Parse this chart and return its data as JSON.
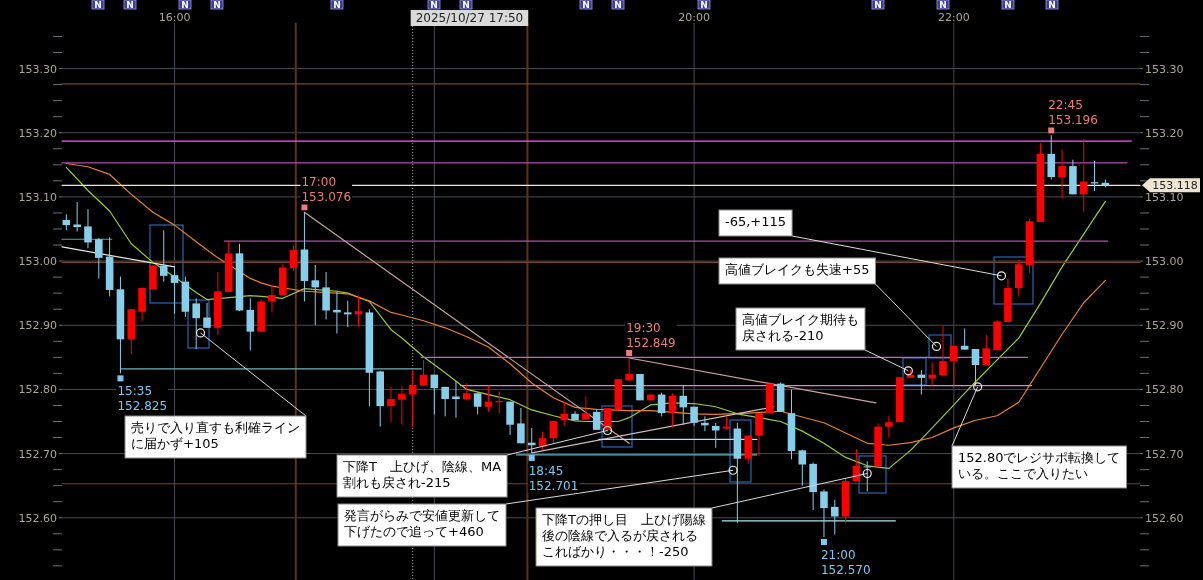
{
  "chart_data": {
    "type": "candlestick",
    "xlim": [
      "2025-10-27T15:08",
      "2025-10-27T23:26"
    ],
    "xticks": [
      {
        "value": "2025-10-27T16:00",
        "label": "16:00"
      },
      {
        "value": "2025-10-27T18:00",
        "label": null
      },
      {
        "value": "2025-10-27T20:00",
        "label": "20:00"
      },
      {
        "value": "2025-10-27T22:00",
        "label": "22:00"
      }
    ],
    "ylim": [
      152.503,
      153.371
    ],
    "yticks": [
      {
        "value": 153.35,
        "label": null
      },
      {
        "value": 153.325,
        "label": null
      },
      {
        "value": 153.3,
        "label": "153.30"
      },
      {
        "value": 153.275,
        "label": null
      },
      {
        "value": 153.25,
        "label": null
      },
      {
        "value": 153.225,
        "label": null
      },
      {
        "value": 153.2,
        "label": "153.20"
      },
      {
        "value": 153.175,
        "label": null
      },
      {
        "value": 153.15,
        "label": null
      },
      {
        "value": 153.125,
        "label": null
      },
      {
        "value": 153.1,
        "label": "153.10"
      },
      {
        "value": 153.075,
        "label": null
      },
      {
        "value": 153.05,
        "label": null
      },
      {
        "value": 153.025,
        "label": null
      },
      {
        "value": 153.0,
        "label": "153.00"
      },
      {
        "value": 152.975,
        "label": null
      },
      {
        "value": 152.95,
        "label": null
      },
      {
        "value": 152.925,
        "label": null
      },
      {
        "value": 152.9,
        "label": "152.90"
      },
      {
        "value": 152.875,
        "label": null
      },
      {
        "value": 152.85,
        "label": null
      },
      {
        "value": 152.825,
        "label": null
      },
      {
        "value": 152.8,
        "label": "152.80"
      },
      {
        "value": 152.775,
        "label": null
      },
      {
        "value": 152.75,
        "label": null
      },
      {
        "value": 152.725,
        "label": null
      },
      {
        "value": 152.7,
        "label": "152.70"
      },
      {
        "value": 152.675,
        "label": null
      },
      {
        "value": 152.65,
        "label": null
      },
      {
        "value": 152.625,
        "label": null
      },
      {
        "value": 152.6,
        "label": "152.60"
      },
      {
        "value": 152.575,
        "label": null
      },
      {
        "value": 152.55,
        "label": null
      },
      {
        "value": 152.525,
        "label": null
      }
    ],
    "y2lim": [
      152.503,
      153.371
    ],
    "y2ticks": [
      {
        "value": 153.35,
        "label": null
      },
      {
        "value": 153.325,
        "label": null
      },
      {
        "value": 153.3,
        "label": "153.30"
      },
      {
        "value": 153.275,
        "label": null
      },
      {
        "value": 153.25,
        "label": null
      },
      {
        "value": 153.225,
        "label": null
      },
      {
        "value": 153.2,
        "label": "153.20"
      },
      {
        "value": 153.175,
        "label": null
      },
      {
        "value": 153.15,
        "label": null
      },
      {
        "value": 153.125,
        "label": null
      },
      {
        "value": 153.1,
        "label": "153.10"
      },
      {
        "value": 153.075,
        "label": null
      },
      {
        "value": 153.05,
        "label": null
      },
      {
        "value": 153.025,
        "label": null
      },
      {
        "value": 153.0,
        "label": "153.00"
      },
      {
        "value": 152.975,
        "label": null
      },
      {
        "value": 152.95,
        "label": null
      },
      {
        "value": 152.925,
        "label": null
      },
      {
        "value": 152.9,
        "label": "152.90"
      },
      {
        "value": 152.875,
        "label": null
      },
      {
        "value": 152.85,
        "label": null
      },
      {
        "value": 152.825,
        "label": null
      },
      {
        "value": 152.8,
        "label": "152.80"
      },
      {
        "value": 152.775,
        "label": null
      },
      {
        "value": 152.75,
        "label": null
      },
      {
        "value": 152.725,
        "label": null
      },
      {
        "value": 152.7,
        "label": "152.70"
      },
      {
        "value": 152.675,
        "label": null
      },
      {
        "value": 152.65,
        "label": null
      },
      {
        "value": 152.625,
        "label": null
      },
      {
        "value": 152.6,
        "label": "152.60"
      },
      {
        "value": 152.575,
        "label": null
      },
      {
        "value": 152.55,
        "label": null
      },
      {
        "value": 152.525,
        "label": null
      }
    ],
    "grid": true,
    "series": [
      {
        "type": "candlestick",
        "x": [
          "2025-10-27T15:10",
          "2025-10-27T15:15",
          "2025-10-27T15:20",
          "2025-10-27T15:25",
          "2025-10-27T15:30",
          "2025-10-27T15:35",
          "2025-10-27T15:40",
          "2025-10-27T15:45",
          "2025-10-27T15:50",
          "2025-10-27T15:55",
          "2025-10-27T16:00",
          "2025-10-27T16:05",
          "2025-10-27T16:10",
          "2025-10-27T16:15",
          "2025-10-27T16:20",
          "2025-10-27T16:25",
          "2025-10-27T16:30",
          "2025-10-27T16:35",
          "2025-10-27T16:40",
          "2025-10-27T16:45",
          "2025-10-27T16:50",
          "2025-10-27T16:55",
          "2025-10-27T17:00",
          "2025-10-27T17:05",
          "2025-10-27T17:10",
          "2025-10-27T17:15",
          "2025-10-27T17:20",
          "2025-10-27T17:25",
          "2025-10-27T17:30",
          "2025-10-27T17:35",
          "2025-10-27T17:40",
          "2025-10-27T17:45",
          "2025-10-27T17:50",
          "2025-10-27T17:55",
          "2025-10-27T18:00",
          "2025-10-27T18:05",
          "2025-10-27T18:10",
          "2025-10-27T18:15",
          "2025-10-27T18:20",
          "2025-10-27T18:25",
          "2025-10-27T18:30",
          "2025-10-27T18:35",
          "2025-10-27T18:40",
          "2025-10-27T18:45",
          "2025-10-27T18:50",
          "2025-10-27T18:55",
          "2025-10-27T19:00",
          "2025-10-27T19:05",
          "2025-10-27T19:10",
          "2025-10-27T19:15",
          "2025-10-27T19:20",
          "2025-10-27T19:25",
          "2025-10-27T19:30",
          "2025-10-27T19:35",
          "2025-10-27T19:40",
          "2025-10-27T19:45",
          "2025-10-27T19:50",
          "2025-10-27T19:55",
          "2025-10-27T20:00",
          "2025-10-27T20:05",
          "2025-10-27T20:10",
          "2025-10-27T20:15",
          "2025-10-27T20:20",
          "2025-10-27T20:25",
          "2025-10-27T20:30",
          "2025-10-27T20:35",
          "2025-10-27T20:40",
          "2025-10-27T20:45",
          "2025-10-27T20:50",
          "2025-10-27T20:55",
          "2025-10-27T21:00",
          "2025-10-27T21:05",
          "2025-10-27T21:10",
          "2025-10-27T21:15",
          "2025-10-27T21:20",
          "2025-10-27T21:25",
          "2025-10-27T21:30",
          "2025-10-27T21:35",
          "2025-10-27T21:40",
          "2025-10-27T21:45",
          "2025-10-27T21:50",
          "2025-10-27T21:55",
          "2025-10-27T22:00",
          "2025-10-27T22:05",
          "2025-10-27T22:10",
          "2025-10-27T22:15",
          "2025-10-27T22:20",
          "2025-10-27T22:25",
          "2025-10-27T22:30",
          "2025-10-27T22:35",
          "2025-10-27T22:40",
          "2025-10-27T22:45",
          "2025-10-27T22:50",
          "2025-10-27T22:55",
          "2025-10-27T23:00",
          "2025-10-27T23:05",
          "2025-10-27T23:10"
        ],
        "ohlc": [
          [
            153.064,
            153.073,
            153.048,
            153.056
          ],
          [
            153.057,
            153.092,
            153.046,
            153.053
          ],
          [
            153.054,
            153.081,
            153.02,
            153.029
          ],
          [
            153.034,
            153.036,
            152.973,
            153.005
          ],
          [
            153.007,
            153.037,
            152.945,
            152.955
          ],
          [
            152.956,
            152.976,
            152.825,
            152.878
          ],
          [
            152.878,
            152.925,
            152.855,
            152.925
          ],
          [
            152.921,
            152.959,
            152.907,
            152.958
          ],
          [
            152.956,
            152.994,
            152.955,
            152.993
          ],
          [
            152.993,
            153.048,
            152.968,
            152.977
          ],
          [
            152.978,
            152.991,
            152.918,
            152.966
          ],
          [
            152.968,
            152.976,
            152.913,
            152.921
          ],
          [
            152.934,
            152.942,
            152.863,
            152.911
          ],
          [
            152.912,
            152.935,
            152.896,
            152.896
          ],
          [
            152.896,
            152.983,
            152.885,
            152.953
          ],
          [
            152.952,
            153.032,
            152.952,
            153.012
          ],
          [
            153.012,
            153.027,
            152.922,
            152.923
          ],
          [
            152.924,
            152.942,
            152.861,
            152.89
          ],
          [
            152.89,
            152.94,
            152.889,
            152.937
          ],
          [
            152.937,
            152.963,
            152.92,
            152.947
          ],
          [
            152.947,
            152.995,
            152.947,
            152.99
          ],
          [
            152.989,
            153.025,
            152.985,
            153.017
          ],
          [
            153.018,
            153.076,
            152.937,
            152.969
          ],
          [
            152.97,
            152.994,
            152.9,
            152.959
          ],
          [
            152.959,
            152.983,
            152.909,
            152.923
          ],
          [
            152.924,
            152.952,
            152.887,
            152.92
          ],
          [
            152.92,
            152.938,
            152.897,
            152.917
          ],
          [
            152.917,
            152.947,
            152.898,
            152.922
          ],
          [
            152.92,
            152.925,
            152.774,
            152.826
          ],
          [
            152.828,
            152.829,
            152.742,
            152.774
          ],
          [
            152.774,
            152.804,
            152.749,
            152.785
          ],
          [
            152.784,
            152.805,
            152.745,
            152.793
          ],
          [
            152.792,
            152.831,
            152.742,
            152.807
          ],
          [
            152.806,
            152.846,
            152.806,
            152.823
          ],
          [
            152.823,
            152.823,
            152.761,
            152.802
          ],
          [
            152.804,
            152.804,
            152.758,
            152.785
          ],
          [
            152.789,
            152.813,
            152.756,
            152.785
          ],
          [
            152.785,
            152.81,
            152.783,
            152.794
          ],
          [
            152.794,
            152.795,
            152.761,
            152.773
          ],
          [
            152.773,
            152.806,
            152.765,
            152.781
          ],
          [
            152.78,
            152.797,
            152.763,
            152.782
          ],
          [
            152.781,
            152.781,
            152.729,
            152.745
          ],
          [
            152.747,
            152.771,
            152.716,
            152.716
          ],
          [
            152.717,
            152.74,
            152.701,
            152.713
          ],
          [
            152.711,
            152.734,
            152.706,
            152.724
          ],
          [
            152.724,
            152.751,
            152.716,
            152.751
          ],
          [
            152.752,
            152.781,
            152.743,
            152.762
          ],
          [
            152.762,
            152.766,
            152.752,
            152.752
          ],
          [
            152.753,
            152.789,
            152.753,
            152.763
          ],
          [
            152.765,
            152.768,
            152.737,
            152.737
          ],
          [
            152.737,
            152.771,
            152.733,
            152.771
          ],
          [
            152.768,
            152.816,
            152.768,
            152.816
          ],
          [
            152.814,
            152.849,
            152.814,
            152.824
          ],
          [
            152.824,
            152.824,
            152.783,
            152.783
          ],
          [
            152.783,
            152.792,
            152.783,
            152.792
          ],
          [
            152.792,
            152.795,
            152.758,
            152.763
          ],
          [
            152.764,
            152.794,
            152.74,
            152.79
          ],
          [
            152.79,
            152.807,
            152.745,
            152.772
          ],
          [
            152.773,
            152.773,
            152.743,
            152.748
          ],
          [
            152.748,
            152.758,
            152.735,
            152.744
          ],
          [
            152.743,
            152.748,
            152.709,
            152.736
          ],
          [
            152.739,
            152.758,
            152.737,
            152.742
          ],
          [
            152.739,
            152.748,
            152.592,
            152.692
          ],
          [
            152.692,
            152.728,
            152.684,
            152.728
          ],
          [
            152.728,
            152.763,
            152.696,
            152.763
          ],
          [
            152.763,
            152.811,
            152.763,
            152.809
          ],
          [
            152.809,
            152.811,
            152.765,
            152.765
          ],
          [
            152.763,
            152.8,
            152.691,
            152.704
          ],
          [
            152.705,
            152.706,
            152.65,
            152.683
          ],
          [
            152.684,
            152.686,
            152.612,
            152.64
          ],
          [
            152.641,
            152.644,
            152.57,
            152.615
          ],
          [
            152.617,
            152.628,
            152.574,
            152.602
          ],
          [
            152.602,
            152.661,
            152.591,
            152.657
          ],
          [
            152.657,
            152.707,
            152.657,
            152.681
          ],
          [
            152.68,
            152.688,
            152.641,
            152.679
          ],
          [
            152.68,
            152.747,
            152.68,
            152.742
          ],
          [
            152.742,
            152.759,
            152.725,
            152.749
          ],
          [
            152.749,
            152.819,
            152.749,
            152.819
          ],
          [
            152.818,
            152.83,
            152.818,
            152.823
          ],
          [
            152.823,
            152.83,
            152.792,
            152.818
          ],
          [
            152.817,
            152.842,
            152.806,
            152.823
          ],
          [
            152.822,
            152.899,
            152.822,
            152.844
          ],
          [
            152.844,
            152.868,
            152.806,
            152.868
          ],
          [
            152.868,
            152.895,
            152.862,
            152.862
          ],
          [
            152.863,
            152.863,
            152.805,
            152.838
          ],
          [
            152.838,
            152.885,
            152.838,
            152.864
          ],
          [
            152.861,
            152.908,
            152.861,
            152.906
          ],
          [
            152.905,
            152.973,
            152.905,
            152.958
          ],
          [
            152.958,
            153.002,
            152.945,
            152.995
          ],
          [
            152.994,
            153.066,
            152.981,
            153.062
          ],
          [
            153.061,
            153.184,
            153.061,
            153.167
          ],
          [
            153.167,
            153.196,
            153.127,
            153.131
          ],
          [
            153.131,
            153.174,
            153.097,
            153.148
          ],
          [
            153.148,
            153.158,
            153.104,
            153.104
          ],
          [
            153.104,
            153.19,
            153.077,
            153.124
          ],
          [
            153.123,
            153.156,
            153.109,
            153.121
          ],
          [
            153.122,
            153.127,
            153.115,
            153.118
          ]
        ],
        "colors": [
          "#87ceeb",
          "#87ceeb",
          "#87ceeb",
          "#87ceeb",
          "#87ceeb",
          "#87ceeb",
          "#ff0000",
          "#ff0000",
          "#ff0000",
          "#87ceeb",
          "#87ceeb",
          "#87ceeb",
          "#87ceeb",
          "#87ceeb",
          "#ff0000",
          "#ff0000",
          "#87ceeb",
          "#87ceeb",
          "#ff0000",
          "#ff0000",
          "#ff0000",
          "#ff0000",
          "#87ceeb",
          "#87ceeb",
          "#87ceeb",
          "#87ceeb",
          "#87ceeb",
          "#ff0000",
          "#87ceeb",
          "#87ceeb",
          "#ff0000",
          "#ff0000",
          "#ff0000",
          "#ff0000",
          "#87ceeb",
          "#87ceeb",
          "#87ceeb",
          "#ff0000",
          "#87ceeb",
          "#ff0000",
          "#ff0000",
          "#87ceeb",
          "#87ceeb",
          "#87ceeb",
          "#ff0000",
          "#ff0000",
          "#ff0000",
          "#87ceeb",
          "#ff0000",
          "#87ceeb",
          "#ff0000",
          "#ff0000",
          "#ff0000",
          "#87ceeb",
          "#ff0000",
          "#87ceeb",
          "#ff0000",
          "#87ceeb",
          "#87ceeb",
          "#87ceeb",
          "#87ceeb",
          "#ff0000",
          "#87ceeb",
          "#ff0000",
          "#ff0000",
          "#ff0000",
          "#87ceeb",
          "#87ceeb",
          "#87ceeb",
          "#87ceeb",
          "#87ceeb",
          "#87ceeb",
          "#ff0000",
          "#ff0000",
          "#87ceeb",
          "#ff0000",
          "#ff0000",
          "#ff0000",
          "#ff0000",
          "#87ceeb",
          "#ff0000",
          "#ff0000",
          "#ff0000",
          "#87ceeb",
          "#87ceeb",
          "#ff0000",
          "#ff0000",
          "#ff0000",
          "#ff0000",
          "#ff0000",
          "#ff0000",
          "#87ceeb",
          "#ff0000",
          "#87ceeb",
          "#ff0000",
          "#87ceeb",
          "#87ceeb"
        ]
      },
      {
        "type": "line",
        "color": "#9acd32",
        "x": [
          "2025-10-27T15:10",
          "2025-10-27T15:20",
          "2025-10-27T15:30",
          "2025-10-27T15:40",
          "2025-10-27T15:50",
          "2025-10-27T16:00",
          "2025-10-27T16:10",
          "2025-10-27T16:15",
          "2025-10-27T16:35",
          "2025-10-27T16:40",
          "2025-10-27T16:50",
          "2025-10-27T17:00",
          "2025-10-27T17:15",
          "2025-10-27T17:20",
          "2025-10-27T17:30",
          "2025-10-27T17:40",
          "2025-10-27T17:45",
          "2025-10-27T17:55",
          "2025-10-27T18:05",
          "2025-10-27T18:15",
          "2025-10-27T18:25",
          "2025-10-27T18:35",
          "2025-10-27T18:45",
          "2025-10-27T18:55",
          "2025-10-27T19:05",
          "2025-10-27T19:10",
          "2025-10-27T19:25",
          "2025-10-27T19:30",
          "2025-10-27T19:40",
          "2025-10-27T19:50",
          "2025-10-27T20:00",
          "2025-10-27T20:10",
          "2025-10-27T20:20",
          "2025-10-27T20:35",
          "2025-10-27T20:40",
          "2025-10-27T20:50",
          "2025-10-27T21:00",
          "2025-10-27T21:10",
          "2025-10-27T21:20",
          "2025-10-27T21:30",
          "2025-10-27T21:40",
          "2025-10-27T21:50",
          "2025-10-27T22:00",
          "2025-10-27T22:10",
          "2025-10-27T22:20",
          "2025-10-27T22:30",
          "2025-10-27T22:40",
          "2025-10-27T22:50",
          "2025-10-27T23:00",
          "2025-10-27T23:10"
        ],
        "values": [
          153.146,
          153.11,
          153.078,
          153.027,
          152.998,
          152.975,
          152.951,
          152.94,
          152.946,
          152.945,
          152.942,
          152.957,
          152.953,
          152.95,
          152.937,
          152.893,
          152.88,
          152.851,
          152.826,
          152.8,
          152.792,
          152.784,
          152.768,
          152.759,
          152.751,
          152.75,
          152.75,
          152.756,
          152.776,
          152.779,
          152.778,
          152.773,
          152.762,
          152.753,
          152.75,
          152.735,
          152.716,
          152.694,
          152.681,
          152.677,
          152.705,
          152.74,
          152.776,
          152.812,
          152.846,
          152.88,
          152.934,
          152.991,
          153.042,
          153.093
        ]
      },
      {
        "type": "line",
        "color": "#e8821e",
        "x": [
          "2025-10-27T15:10",
          "2025-10-27T15:20",
          "2025-10-27T15:30",
          "2025-10-27T15:40",
          "2025-10-27T15:50",
          "2025-10-27T16:00",
          "2025-10-27T16:10",
          "2025-10-27T16:20",
          "2025-10-27T16:35",
          "2025-10-27T16:40",
          "2025-10-27T16:45",
          "2025-10-27T17:00",
          "2025-10-27T17:15",
          "2025-10-27T17:20",
          "2025-10-27T17:30",
          "2025-10-27T17:40",
          "2025-10-27T17:45",
          "2025-10-27T17:55",
          "2025-10-27T18:05",
          "2025-10-27T18:15",
          "2025-10-27T18:25",
          "2025-10-27T18:35",
          "2025-10-27T18:45",
          "2025-10-27T18:55",
          "2025-10-27T19:05",
          "2025-10-27T19:15",
          "2025-10-27T19:30",
          "2025-10-27T19:40",
          "2025-10-27T20:00",
          "2025-10-27T20:10",
          "2025-10-27T20:25",
          "2025-10-27T20:40",
          "2025-10-27T20:50",
          "2025-10-27T21:00",
          "2025-10-27T21:10",
          "2025-10-27T21:20",
          "2025-10-27T21:30",
          "2025-10-27T21:40",
          "2025-10-27T21:50",
          "2025-10-27T22:00",
          "2025-10-27T22:10",
          "2025-10-27T22:20",
          "2025-10-27T22:30",
          "2025-10-27T22:40",
          "2025-10-27T22:50",
          "2025-10-27T23:00",
          "2025-10-27T23:10"
        ],
        "values": [
          153.152,
          153.147,
          153.135,
          153.104,
          153.076,
          153.056,
          153.03,
          153.005,
          152.973,
          152.966,
          152.961,
          152.953,
          152.95,
          152.949,
          152.938,
          152.92,
          152.916,
          152.907,
          152.896,
          152.882,
          152.866,
          152.84,
          152.81,
          152.787,
          152.772,
          152.769,
          152.767,
          152.767,
          152.762,
          152.761,
          152.763,
          152.766,
          152.757,
          152.748,
          152.732,
          152.716,
          152.713,
          152.717,
          152.725,
          152.74,
          152.752,
          152.759,
          152.78,
          152.833,
          152.886,
          152.935,
          152.97
        ]
      },
      {
        "type": "line",
        "color": "#7a4620",
        "x": [
          "2025-10-27T15:08",
          "2025-10-27T23:26"
        ],
        "values": [
          153.276,
          153.276
        ]
      },
      {
        "type": "line",
        "color": "#ff55ff",
        "x": [
          "2025-10-27T15:08",
          "2025-10-27T23:22"
        ],
        "values": [
          153.187,
          153.187
        ]
      },
      {
        "type": "line",
        "color": "#b04cb0",
        "x": [
          "2025-10-27T15:08",
          "2025-10-27T23:20"
        ],
        "values": [
          153.153,
          153.153
        ]
      },
      {
        "type": "line",
        "color": "#efe6d2",
        "x": [
          "2025-10-27T15:08",
          "2025-10-27T23:26"
        ],
        "values": [
          153.118,
          153.118
        ]
      },
      {
        "type": "line",
        "color": "#7a4620",
        "x": [
          "2025-10-27T15:08",
          "2025-10-27T23:26"
        ],
        "values": [
          152.998,
          152.998
        ]
      },
      {
        "type": "line",
        "color": "#7a4620",
        "x": [
          "2025-10-27T15:08",
          "2025-10-27T23:26"
        ],
        "values": [
          152.653,
          152.653
        ]
      },
      {
        "type": "line",
        "color": "#5f9ea0",
        "x": [
          "2025-10-27T15:08",
          "2025-10-27T15:31"
        ],
        "values": [
          153.034,
          153.034
        ]
      },
      {
        "type": "line",
        "color": "#e6e6e6",
        "x": [
          "2025-10-27T15:08",
          "2025-10-27T16:00"
        ],
        "values": [
          153.022,
          152.991
        ]
      },
      {
        "type": "line",
        "color": "#b04cb0",
        "x": [
          "2025-10-27T16:23",
          "2025-10-27T23:11"
        ],
        "values": [
          153.031,
          153.031
        ]
      },
      {
        "type": "line",
        "color": "#6ab4bc",
        "x": [
          "2025-10-27T15:35",
          "2025-10-27T17:54"
        ],
        "values": [
          152.832,
          152.832
        ]
      },
      {
        "type": "line",
        "color": "#c8a0a0",
        "x": [
          "2025-10-27T17:00",
          "2025-10-27T19:30"
        ],
        "values": [
          153.076,
          152.716
        ]
      },
      {
        "type": "line",
        "color": "#c860c8",
        "x": [
          "2025-10-27T17:54",
          "2025-10-27T22:34"
        ],
        "values": [
          152.85,
          152.85
        ]
      },
      {
        "type": "line",
        "color": "#e878e8",
        "x": [
          "2025-10-27T18:12",
          "2025-10-27T22:36"
        ],
        "values": [
          152.806,
          152.806
        ]
      },
      {
        "type": "line",
        "color": "#5fb8c8",
        "x": [
          "2025-10-27T18:38",
          "2025-10-27T20:29"
        ],
        "values": [
          152.698,
          152.698
        ]
      },
      {
        "type": "line",
        "color": "#d0b8c0",
        "x": [
          "2025-10-27T18:45",
          "2025-10-27T20:37"
        ],
        "values": [
          152.701,
          152.773
        ]
      },
      {
        "type": "line",
        "color": "#c8a0a0",
        "x": [
          "2025-10-27T19:30",
          "2025-10-27T21:24"
        ],
        "values": [
          152.849,
          152.779
        ]
      },
      {
        "type": "line",
        "color": "#a8e8f0",
        "x": [
          "2025-10-27T19:16",
          "2025-10-27T20:29"
        ],
        "values": [
          152.722,
          152.722
        ]
      },
      {
        "type": "line",
        "color": "#a8e8f0",
        "x": [
          "2025-10-27T20:13",
          "2025-10-27T21:33"
        ],
        "values": [
          152.595,
          152.595
        ]
      }
    ],
    "ref_lines": [
      {
        "axis": "x",
        "value": "2025-10-27T16:56",
        "color": "#5a3418"
      },
      {
        "axis": "x",
        "value": "2025-10-27T18:43",
        "color": "#5a3418"
      },
      {
        "axis": "x",
        "value": "2025-10-27T17:50",
        "label": "2025/10/27 17:50",
        "color": "#9a9a9a",
        "line_style": "dotted"
      }
    ],
    "annotations": [
      {
        "text": "売りで入り直すも利確ラインに届かず+105",
        "x": "2025-10-27T16:12",
        "y": 152.888
      },
      {
        "text": "下降T　上ひげ、陰線、MA割れも戻され-215",
        "x": "2025-10-27T19:20",
        "y": 152.736
      },
      {
        "text": "発言がらみで安値更新して下げたので追って+460",
        "x": "2025-10-27T20:18",
        "y": 152.674
      },
      {
        "text": "下降Tの押し目　上ひげ陽線後の陰線で入るが戻されるこればかり・・・！-250",
        "x": "2025-10-27T21:20",
        "y": 152.669
      },
      {
        "text": "152.80でレジサポ転換している。ここで入りたい",
        "x": "2025-10-27T22:11",
        "y": 152.804
      },
      {
        "text": "高値ブレイク期待も戻される-210",
        "x": "2025-10-27T21:39",
        "y": 152.829
      },
      {
        "text": "高値ブレイクも失速+55",
        "x": "2025-10-27T21:52",
        "y": 152.867
      },
      {
        "text": "-65,+115",
        "x": "2025-10-27T22:22",
        "y": 152.977
      },
      {
        "text": "17:00\n153.076",
        "x": "2025-10-27T17:00",
        "y": 153.076
      },
      {
        "text": "19:30\n152.849",
        "x": "2025-10-27T19:30",
        "y": 152.849
      },
      {
        "text": "22:45\n153.196",
        "x": "2025-10-27T22:45",
        "y": 153.196
      },
      {
        "text": "15:35\n152.825",
        "x": "2025-10-27T15:35",
        "y": 152.825
      },
      {
        "text": "18:45\n152.701",
        "x": "2025-10-27T18:45",
        "y": 152.701
      },
      {
        "text": "21:00\n152.570",
        "x": "2025-10-27T21:00",
        "y": 152.57
      },
      {
        "text": "153.118",
        "x": "2025-10-27T23:26",
        "y": 153.118
      },
      "N",
      "N",
      "N",
      "N",
      "N",
      "N",
      "N",
      "N",
      "N",
      "N",
      "N",
      "N",
      "N",
      "N"
    ]
  }
}
